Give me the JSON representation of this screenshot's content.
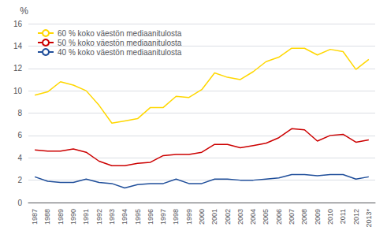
{
  "chart_data": {
    "type": "line",
    "ylabel": "%",
    "categories": [
      "1987",
      "1988",
      "1989",
      "1990",
      "1991",
      "1992",
      "1993",
      "1994",
      "1995",
      "1996",
      "1997",
      "1998",
      "1999",
      "2000",
      "2001",
      "2002",
      "2003",
      "2004",
      "2005",
      "2006",
      "2007",
      "2008",
      "2009",
      "2010",
      "2011",
      "2012",
      "2013*"
    ],
    "series": [
      {
        "name": "60 % koko väestön mediaanitulosta",
        "color": "#FFD700",
        "values": [
          9.6,
          9.9,
          10.8,
          10.5,
          10.0,
          8.7,
          7.1,
          7.3,
          7.5,
          8.5,
          8.5,
          9.5,
          9.4,
          10.1,
          11.6,
          11.2,
          11.0,
          11.7,
          12.6,
          13.0,
          13.8,
          13.8,
          13.2,
          13.7,
          13.5,
          11.9,
          12.8
        ]
      },
      {
        "name": "50 % koko väestön mediaanitulosta",
        "color": "#CC0000",
        "values": [
          4.7,
          4.6,
          4.6,
          4.8,
          4.5,
          3.7,
          3.3,
          3.3,
          3.5,
          3.6,
          4.2,
          4.3,
          4.3,
          4.5,
          5.2,
          5.2,
          4.9,
          5.1,
          5.3,
          5.8,
          6.6,
          6.5,
          5.5,
          6.0,
          6.1,
          5.4,
          5.6
        ]
      },
      {
        "name": "40 % koko väestön mediaanitulosta",
        "color": "#1F4E9A",
        "values": [
          2.3,
          1.9,
          1.8,
          1.8,
          2.1,
          1.8,
          1.7,
          1.3,
          1.6,
          1.7,
          1.7,
          2.1,
          1.7,
          1.7,
          2.1,
          2.1,
          2.0,
          2.0,
          2.1,
          2.2,
          2.5,
          2.5,
          2.4,
          2.5,
          2.5,
          2.1,
          2.3
        ]
      }
    ],
    "ylim": [
      0,
      16
    ],
    "yticks": [
      0,
      2,
      4,
      6,
      8,
      10,
      12,
      14,
      16
    ],
    "grid": true,
    "legend": "upper left"
  }
}
